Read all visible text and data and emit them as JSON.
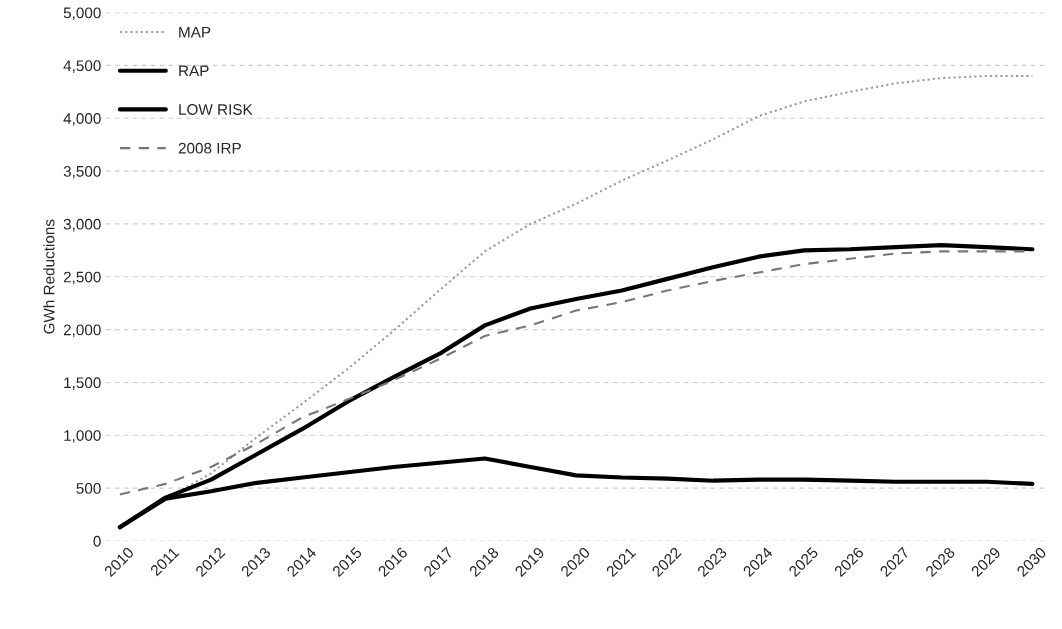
{
  "chart_data": {
    "type": "line",
    "ylabel": "GWh Reductions",
    "categories": [
      "2010",
      "2011",
      "2012",
      "2013",
      "2014",
      "2015",
      "2016",
      "2017",
      "2018",
      "2019",
      "2020",
      "2021",
      "2022",
      "2023",
      "2024",
      "2025",
      "2026",
      "2027",
      "2028",
      "2029",
      "2030"
    ],
    "series": [
      {
        "name": "MAP",
        "color": "#999999",
        "line_style": "dotted",
        "values": [
          130,
          400,
          640,
          980,
          1300,
          1630,
          1990,
          2370,
          2740,
          3000,
          3190,
          3410,
          3600,
          3800,
          4020,
          4160,
          4250,
          4330,
          4380,
          4400,
          4400
        ]
      },
      {
        "name": "RAP",
        "color": "#000000",
        "line_style": "solid",
        "values": [
          130,
          410,
          580,
          820,
          1060,
          1320,
          1550,
          1770,
          2040,
          2200,
          2290,
          2370,
          2480,
          2590,
          2690,
          2750,
          2760,
          2780,
          2800,
          2780,
          2760
        ]
      },
      {
        "name": "LOW RISK",
        "color": "#000000",
        "line_style": "solid",
        "values": [
          130,
          400,
          470,
          550,
          600,
          650,
          700,
          740,
          780,
          700,
          620,
          600,
          590,
          570,
          580,
          580,
          570,
          560,
          560,
          560,
          540
        ]
      },
      {
        "name": "2008 IRP",
        "color": "#777777",
        "line_style": "dashed",
        "values": [
          440,
          540,
          700,
          920,
          1170,
          1340,
          1520,
          1720,
          1940,
          2040,
          2180,
          2260,
          2370,
          2460,
          2540,
          2620,
          2670,
          2720,
          2740,
          2740,
          2740
        ]
      }
    ],
    "ylim": [
      0,
      5000
    ],
    "yticks": [
      {
        "value": 0,
        "label": "0"
      },
      {
        "value": 500,
        "label": "500"
      },
      {
        "value": 1000,
        "label": "1,000"
      },
      {
        "value": 1500,
        "label": "1,500"
      },
      {
        "value": 2000,
        "label": "2,000"
      },
      {
        "value": 2500,
        "label": "2,500"
      },
      {
        "value": 3000,
        "label": "3,000"
      },
      {
        "value": 3500,
        "label": "3,500"
      },
      {
        "value": 4000,
        "label": "4,000"
      },
      {
        "value": 4500,
        "label": "4,500"
      },
      {
        "value": 5000,
        "label": "5,000"
      }
    ],
    "grid": "y",
    "legend": "top left",
    "marker": "none"
  }
}
